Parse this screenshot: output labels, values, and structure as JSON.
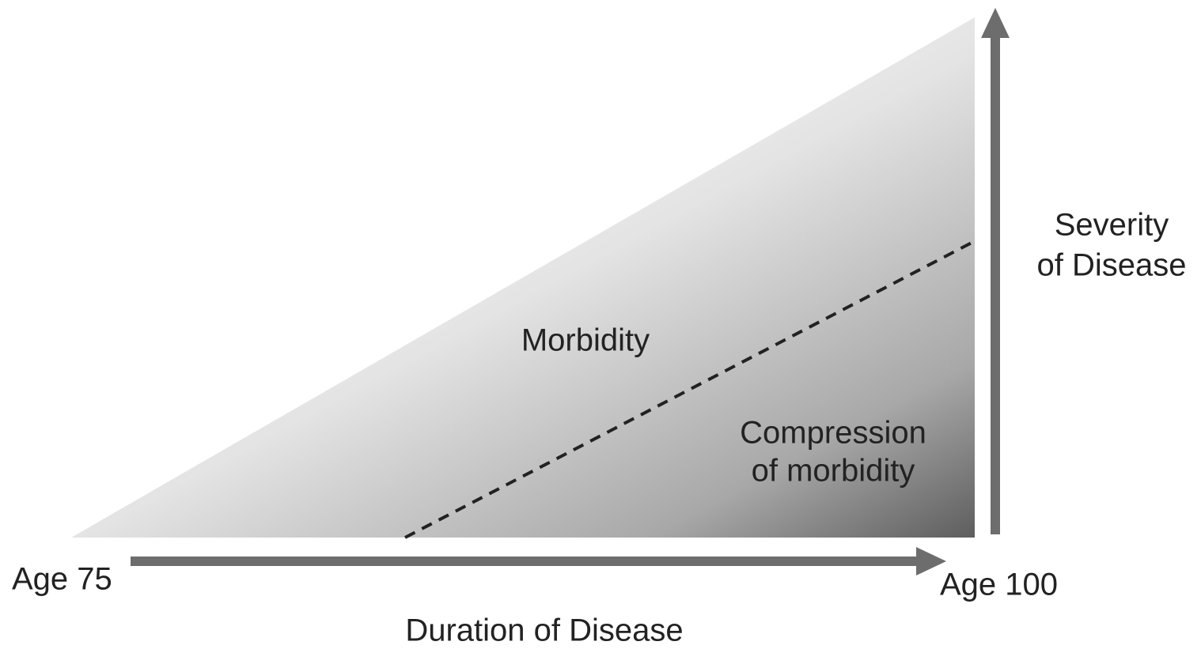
{
  "labels": {
    "x_start": "Age 75",
    "x_end": "Age 100",
    "x_axis": "Duration of Disease",
    "y_axis": [
      "Severity",
      "of Disease"
    ],
    "upper_region": "Morbidity",
    "lower_region": [
      "Compression",
      "of morbidity"
    ]
  }
}
